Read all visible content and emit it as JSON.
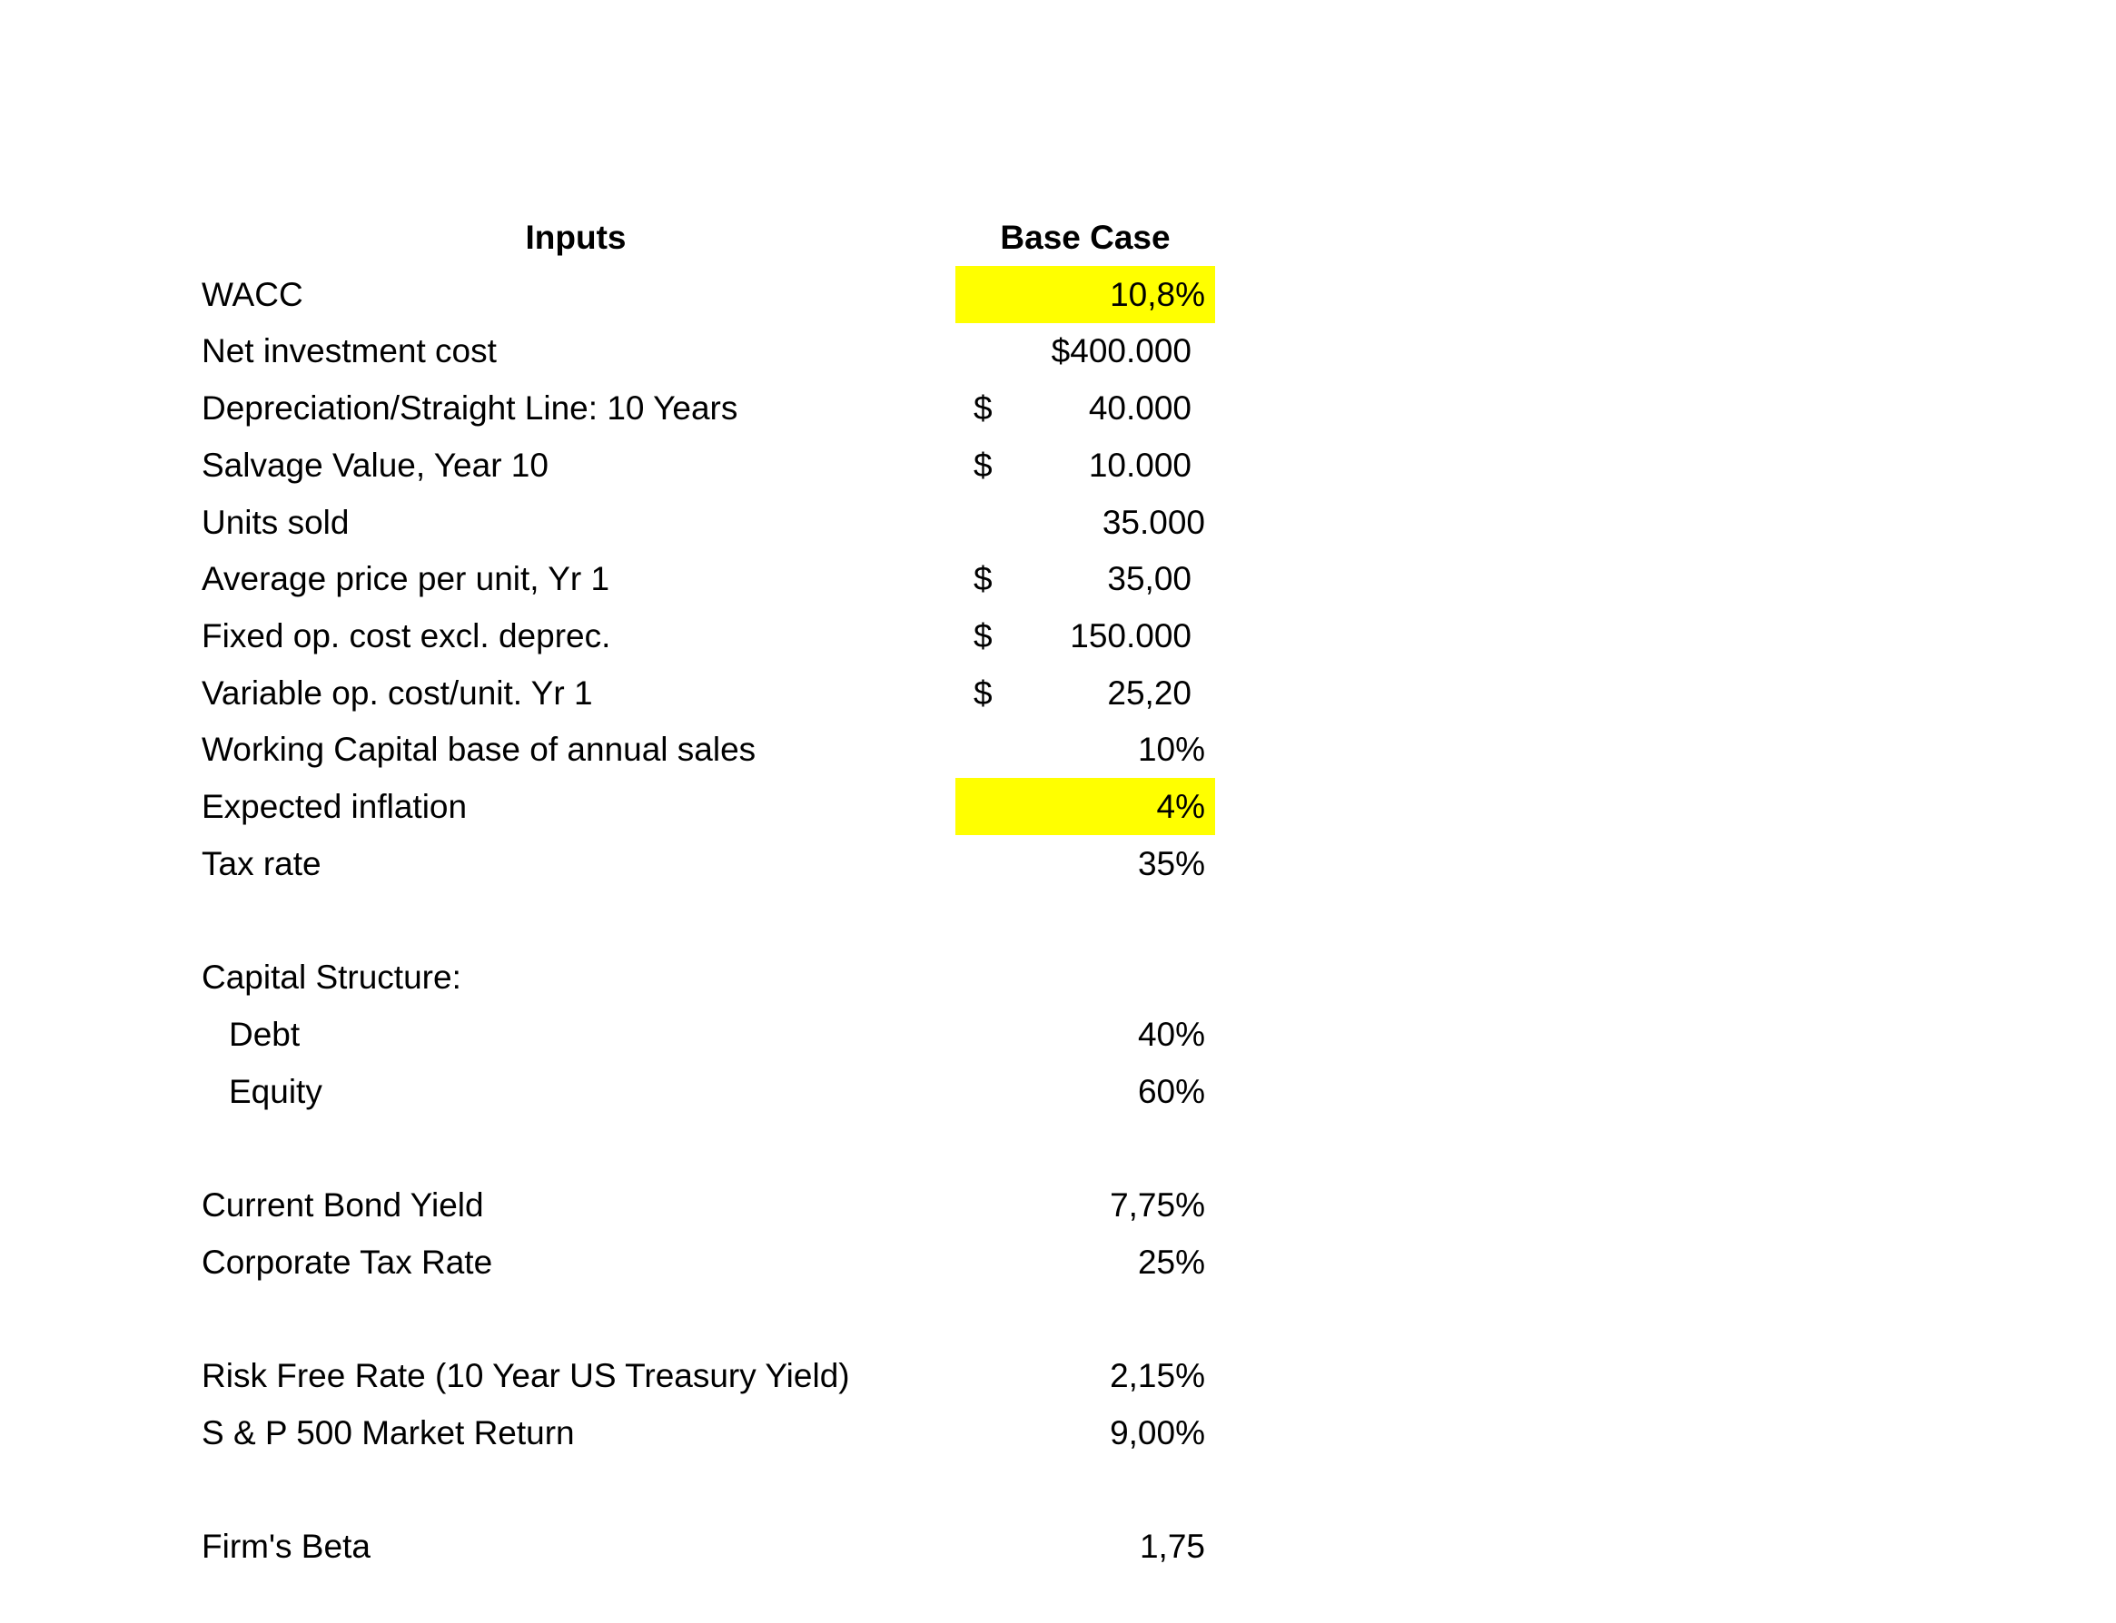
{
  "header": {
    "inputs": "Inputs",
    "base_case": "Base Case"
  },
  "highlight_color": "#ffff00",
  "rows": [
    {
      "label": "WACC",
      "value": "10,8%",
      "highlight": true
    },
    {
      "label": "Net investment cost",
      "value": "$400.000",
      "pad": true
    },
    {
      "label": "Depreciation/Straight Line: 10 Years",
      "currency": "$",
      "value": "40.000",
      "pad": true
    },
    {
      "label": "Salvage Value, Year 10",
      "currency": "$",
      "value": "10.000",
      "pad": true
    },
    {
      "label": "Units sold",
      "value": "35.000"
    },
    {
      "label": "Average price per unit, Yr 1",
      "currency": "$",
      "value": "35,00",
      "pad": true
    },
    {
      "label": "Fixed op. cost excl. deprec.",
      "currency": "$",
      "value": "150.000",
      "pad": true
    },
    {
      "label": "Variable op. cost/unit. Yr 1",
      "currency": "$",
      "value": "25,20",
      "pad": true
    },
    {
      "label": "Working Capital base of annual sales",
      "value": "10%"
    },
    {
      "label": "Expected inflation",
      "value": "4%",
      "highlight": true
    },
    {
      "label": "Tax rate",
      "value": "35%"
    },
    null,
    {
      "label": "Capital Structure:"
    },
    {
      "label": "Debt",
      "value": "40%",
      "indent": true
    },
    {
      "label": "Equity",
      "value": "60%",
      "indent": true
    },
    null,
    {
      "label": "Current Bond Yield",
      "value": "7,75%"
    },
    {
      "label": "Corporate Tax Rate",
      "value": "25%"
    },
    null,
    {
      "label": "Risk Free Rate (10 Year US Treasury Yield)",
      "value": "2,15%"
    },
    {
      "label": "S & P 500 Market Return",
      "value": "9,00%"
    },
    null,
    {
      "label": "Firm's Beta",
      "value": "1,75"
    }
  ]
}
